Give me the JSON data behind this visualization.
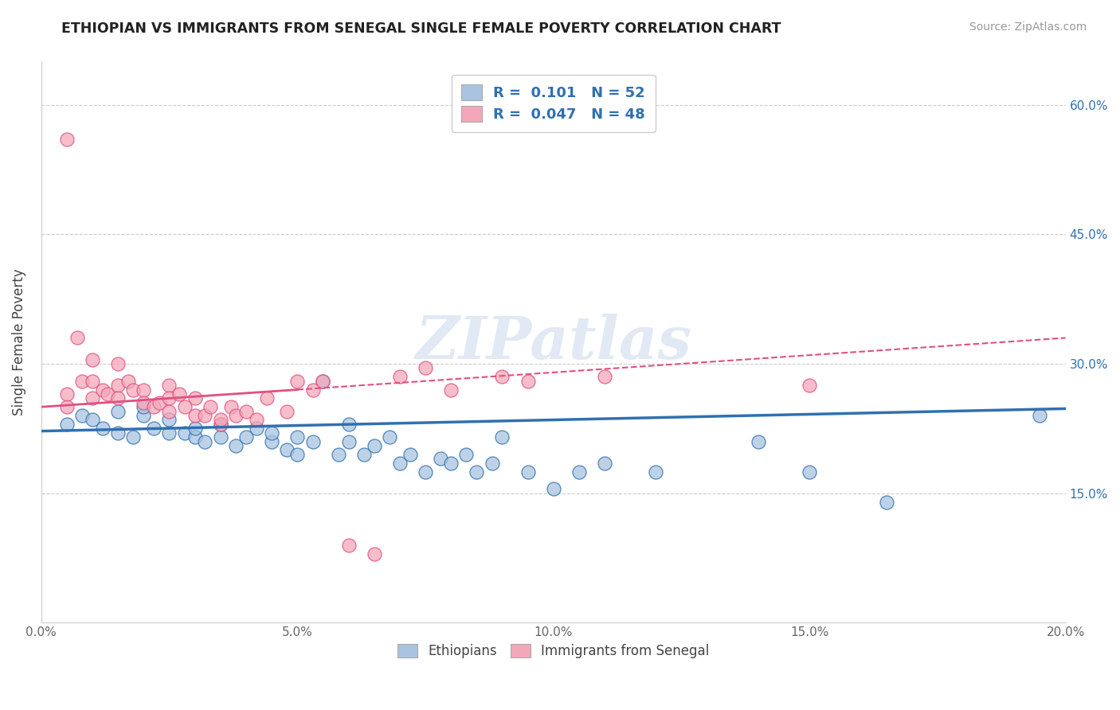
{
  "title": "ETHIOPIAN VS IMMIGRANTS FROM SENEGAL SINGLE FEMALE POVERTY CORRELATION CHART",
  "source": "Source: ZipAtlas.com",
  "ylabel": "Single Female Poverty",
  "xlim": [
    0.0,
    0.2
  ],
  "ylim": [
    0.0,
    0.65
  ],
  "yticks": [
    0.15,
    0.3,
    0.45,
    0.6
  ],
  "ytick_labels": [
    "15.0%",
    "30.0%",
    "45.0%",
    "60.0%"
  ],
  "xticks": [
    0.0,
    0.05,
    0.1,
    0.15,
    0.2
  ],
  "xtick_labels": [
    "0.0%",
    "5.0%",
    "10.0%",
    "15.0%",
    "20.0%"
  ],
  "blue_R": "0.101",
  "blue_N": "52",
  "pink_R": "0.047",
  "pink_N": "48",
  "blue_color": "#a8c4e0",
  "pink_color": "#f4a7b9",
  "blue_line_color": "#3070b0",
  "pink_line_color": "#e05080",
  "watermark": "ZIPatlas",
  "blue_scatter_x": [
    0.005,
    0.008,
    0.01,
    0.012,
    0.015,
    0.015,
    0.018,
    0.02,
    0.02,
    0.022,
    0.025,
    0.025,
    0.028,
    0.03,
    0.03,
    0.032,
    0.035,
    0.035,
    0.038,
    0.04,
    0.042,
    0.045,
    0.045,
    0.048,
    0.05,
    0.05,
    0.053,
    0.055,
    0.058,
    0.06,
    0.06,
    0.063,
    0.065,
    0.068,
    0.07,
    0.072,
    0.075,
    0.078,
    0.08,
    0.083,
    0.085,
    0.088,
    0.09,
    0.095,
    0.1,
    0.105,
    0.11,
    0.12,
    0.14,
    0.15,
    0.165,
    0.195
  ],
  "blue_scatter_y": [
    0.23,
    0.24,
    0.235,
    0.225,
    0.22,
    0.245,
    0.215,
    0.24,
    0.25,
    0.225,
    0.22,
    0.235,
    0.22,
    0.215,
    0.225,
    0.21,
    0.215,
    0.23,
    0.205,
    0.215,
    0.225,
    0.21,
    0.22,
    0.2,
    0.215,
    0.195,
    0.21,
    0.28,
    0.195,
    0.21,
    0.23,
    0.195,
    0.205,
    0.215,
    0.185,
    0.195,
    0.175,
    0.19,
    0.185,
    0.195,
    0.175,
    0.185,
    0.215,
    0.175,
    0.155,
    0.175,
    0.185,
    0.175,
    0.21,
    0.175,
    0.14,
    0.24
  ],
  "pink_scatter_x": [
    0.005,
    0.005,
    0.005,
    0.007,
    0.008,
    0.01,
    0.01,
    0.01,
    0.012,
    0.013,
    0.015,
    0.015,
    0.015,
    0.017,
    0.018,
    0.02,
    0.02,
    0.022,
    0.023,
    0.025,
    0.025,
    0.025,
    0.027,
    0.028,
    0.03,
    0.03,
    0.032,
    0.033,
    0.035,
    0.035,
    0.037,
    0.038,
    0.04,
    0.042,
    0.044,
    0.048,
    0.05,
    0.053,
    0.055,
    0.06,
    0.065,
    0.07,
    0.075,
    0.08,
    0.09,
    0.095,
    0.11,
    0.15
  ],
  "pink_scatter_y": [
    0.56,
    0.25,
    0.265,
    0.33,
    0.28,
    0.305,
    0.28,
    0.26,
    0.27,
    0.265,
    0.3,
    0.275,
    0.26,
    0.28,
    0.27,
    0.27,
    0.255,
    0.25,
    0.255,
    0.275,
    0.26,
    0.245,
    0.265,
    0.25,
    0.26,
    0.24,
    0.24,
    0.25,
    0.23,
    0.235,
    0.25,
    0.24,
    0.245,
    0.235,
    0.26,
    0.245,
    0.28,
    0.27,
    0.28,
    0.09,
    0.08,
    0.285,
    0.295,
    0.27,
    0.285,
    0.28,
    0.285,
    0.275
  ]
}
